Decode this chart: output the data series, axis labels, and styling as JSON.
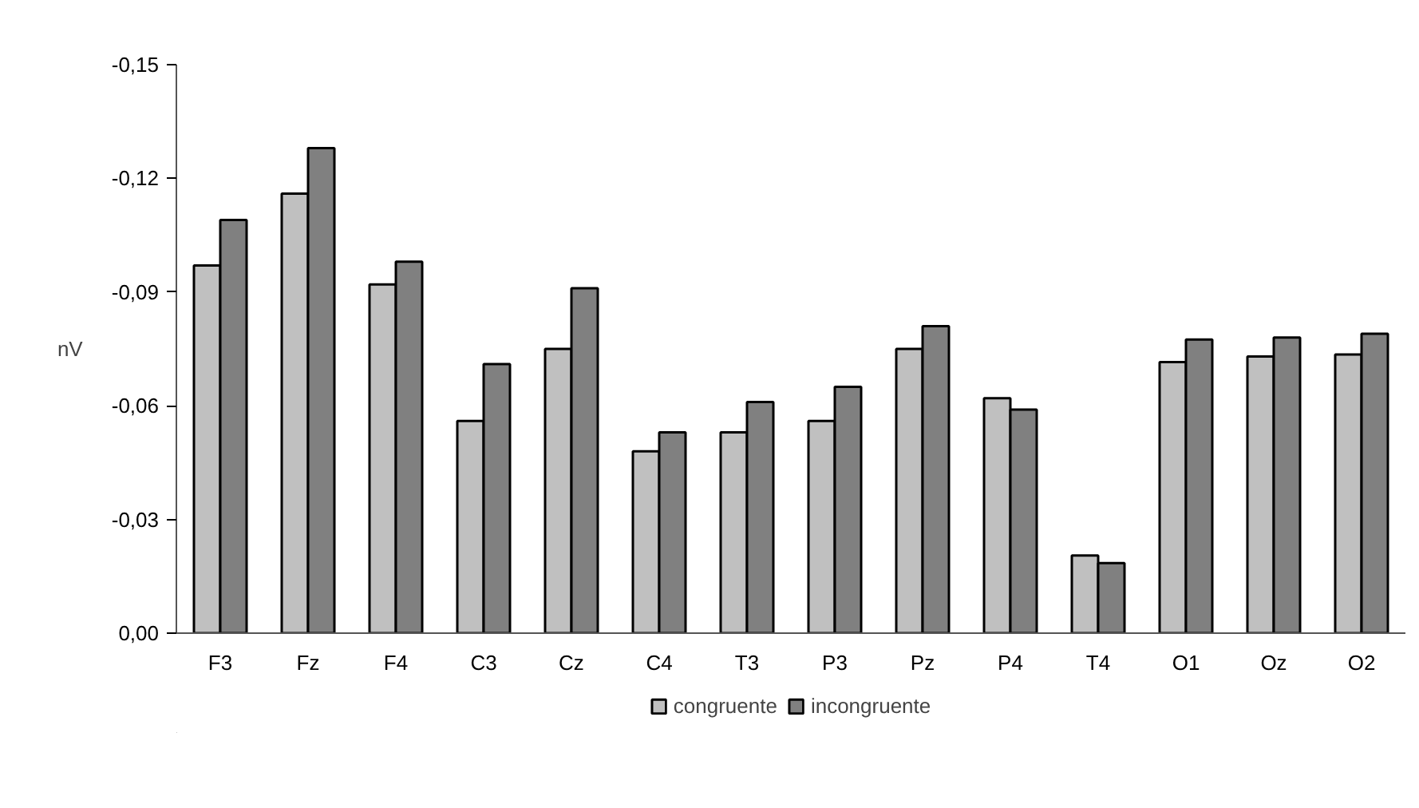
{
  "chart_data": {
    "type": "bar",
    "ylabel": "nV",
    "categories": [
      "F3",
      "Fz",
      "F4",
      "C3",
      "Cz",
      "C4",
      "T3",
      "P3",
      "Pz",
      "P4",
      "T4",
      "O1",
      "Oz",
      "O2"
    ],
    "series": [
      {
        "name": "congruente",
        "color": "#c0c0c0",
        "values": [
          -0.097,
          -0.116,
          -0.092,
          -0.056,
          -0.075,
          -0.048,
          -0.053,
          -0.056,
          -0.075,
          -0.062,
          -0.0205,
          -0.0715,
          -0.073,
          -0.0735
        ]
      },
      {
        "name": "incongruente",
        "color": "#808080",
        "values": [
          -0.109,
          -0.128,
          -0.098,
          -0.071,
          -0.091,
          -0.053,
          -0.061,
          -0.065,
          -0.081,
          -0.059,
          -0.0185,
          -0.0775,
          -0.078,
          -0.079
        ]
      }
    ],
    "ylim": [
      0,
      -0.15
    ],
    "yticks": [
      {
        "value": 0,
        "label": "0,00"
      },
      {
        "value": -0.03,
        "label": "-0,03"
      },
      {
        "value": -0.06,
        "label": "-0,06"
      },
      {
        "value": -0.09,
        "label": "-0,09"
      },
      {
        "value": -0.12,
        "label": "-0,12"
      },
      {
        "value": -0.15,
        "label": "-0,15"
      }
    ],
    "grid": false,
    "legend": "bottom"
  }
}
